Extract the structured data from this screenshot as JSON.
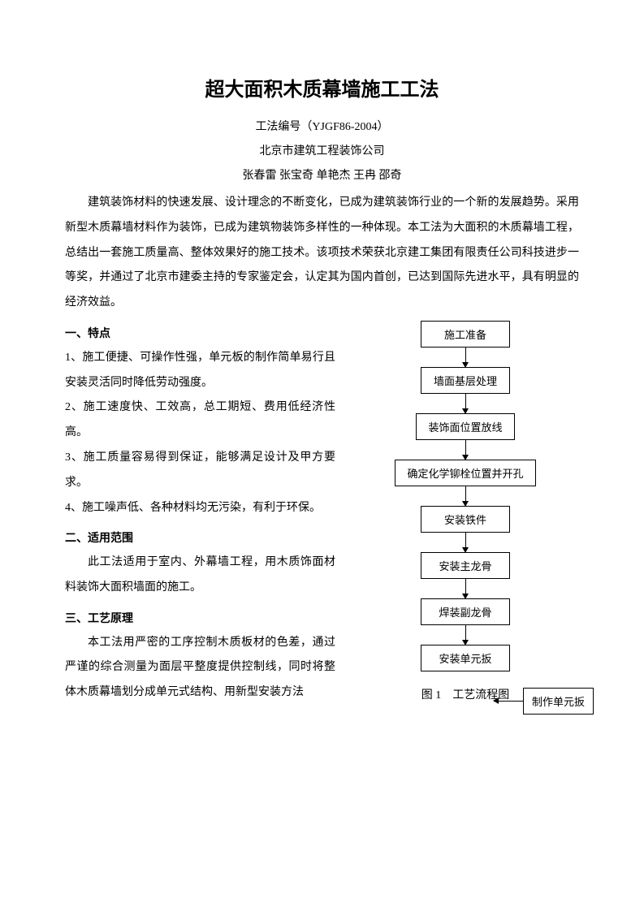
{
  "title": "超大面积木质幕墙施工工法",
  "code_line": "工法编号（YJGF86-2004）",
  "company": "北京市建筑工程装饰公司",
  "authors": "张春雷  张宝奇  单艳杰  王冉  邵奇",
  "intro": "建筑装饰材料的快速发展、设计理念的不断变化，已成为建筑装饰行业的一个新的发展趋势。采用新型木质幕墙材料作为装饰，已成为建筑物装饰多样性的一种体现。本工法为大面积的木质幕墙工程，总结出一套施工质量高、整体效果好的施工技术。该项技术荣获北京建工集团有限责任公司科技进步一等奖，并通过了北京市建委主持的专家鉴定会，认定其为国内首创，已达到国际先进水平，具有明显的经济效益。",
  "sections": {
    "s1_heading": "一、特点",
    "s1_items": [
      "1、施工便捷、可操作性强，单元板的制作简单易行且安装灵活同时降低劳动强度。",
      "2、施工速度快、工效高，总工期短、费用低经济性高。",
      "3、施工质量容易得到保证，能够满足设计及甲方要求。",
      "4、施工噪声低、各种材料均无污染，有利于环保。"
    ],
    "s2_heading": "二、适用范围",
    "s2_text": "此工法适用于室内、外幕墙工程，用木质饰面材料装饰大面积墙面的施工。",
    "s3_heading": "三、工艺原理",
    "s3_text": "本工法用严密的工序控制木质板材的色差，通过严谨的综合测量为面层平整度提供控制线，同时将整体木质幕墙划分成单元式结构、用新型安装方法"
  },
  "flowchart": {
    "type": "flowchart",
    "nodes": [
      "施工准备",
      "墙面基层处理",
      "装饰面位置放线",
      "确定化学铆栓位置并开孔",
      "安装铁件",
      "安装主龙骨",
      "焊装副龙骨",
      "安装单元扳"
    ],
    "side_node": "制作单元扳",
    "side_targets_index": 7,
    "node_border_color": "#000000",
    "node_bg_color": "#ffffff",
    "node_font_size": 13,
    "arrow_color": "#000000",
    "line_height": 24,
    "caption": "图 1　工艺流程图"
  },
  "colors": {
    "background": "#ffffff",
    "text": "#000000"
  },
  "typography": {
    "title_font": "SimHei",
    "title_size": 24,
    "body_font": "SimSun",
    "body_size": 14,
    "line_height": 2.2
  }
}
